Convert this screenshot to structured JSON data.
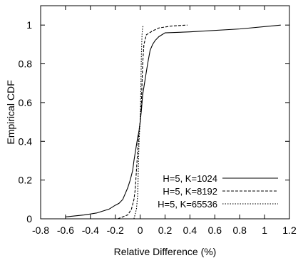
{
  "chart_data": {
    "type": "line",
    "title": "",
    "xlabel": "Relative Difference (%)",
    "ylabel": "Empirical CDF",
    "xlim": [
      -0.8,
      1.2
    ],
    "ylim": [
      0,
      1.1
    ],
    "xticks": [
      -0.8,
      -0.6,
      -0.4,
      -0.2,
      0,
      0.2,
      0.4,
      0.6,
      0.8,
      1,
      1.2
    ],
    "xtick_labels": [
      "-0.8",
      "-0.6",
      "-0.4",
      "-0.2",
      "0",
      "0.2",
      "0.4",
      "0.6",
      "0.8",
      "1",
      "1.2"
    ],
    "yticks": [
      0,
      0.2,
      0.4,
      0.6,
      0.8,
      1
    ],
    "ytick_labels": [
      "0",
      "0.2",
      "0.4",
      "0.6",
      "0.8",
      "1"
    ],
    "grid": false,
    "legend_position": "bottom-right",
    "series": [
      {
        "name": "H=5, K=1024",
        "dash": "solid",
        "x": [
          -0.6,
          -0.45,
          -0.35,
          -0.3,
          -0.25,
          -0.2,
          -0.17,
          -0.14,
          -0.12,
          -0.1,
          -0.08,
          -0.06,
          -0.05,
          -0.04,
          -0.03,
          -0.02,
          -0.01,
          0.0,
          0.01,
          0.02,
          0.04,
          0.06,
          0.08,
          0.1,
          0.12,
          0.15,
          0.2,
          0.4,
          0.8,
          1.13
        ],
        "y": [
          0.01,
          0.02,
          0.03,
          0.04,
          0.05,
          0.07,
          0.08,
          0.1,
          0.13,
          0.16,
          0.2,
          0.25,
          0.3,
          0.34,
          0.38,
          0.42,
          0.45,
          0.5,
          0.56,
          0.64,
          0.72,
          0.8,
          0.87,
          0.9,
          0.92,
          0.94,
          0.96,
          0.965,
          0.98,
          1.0
        ]
      },
      {
        "name": "H=5, K=8192",
        "dash": "dashed",
        "x": [
          -0.18,
          -0.1,
          -0.07,
          -0.05,
          -0.04,
          -0.03,
          -0.02,
          -0.01,
          0.0,
          0.01,
          0.02,
          0.03,
          0.05,
          0.1,
          0.15,
          0.25,
          0.38
        ],
        "y": [
          0.0,
          0.02,
          0.05,
          0.1,
          0.15,
          0.25,
          0.35,
          0.45,
          0.5,
          0.6,
          0.8,
          0.9,
          0.95,
          0.97,
          0.985,
          0.995,
          1.0
        ]
      },
      {
        "name": "H=5, K=65536",
        "dash": "dotted",
        "x": [
          -0.05,
          -0.03,
          -0.02,
          -0.015,
          -0.01,
          -0.005,
          0.0,
          0.005,
          0.01,
          0.015,
          0.02,
          0.03
        ],
        "y": [
          0.0,
          0.05,
          0.12,
          0.25,
          0.38,
          0.45,
          0.5,
          0.65,
          0.85,
          0.95,
          0.99,
          1.0
        ]
      }
    ]
  }
}
